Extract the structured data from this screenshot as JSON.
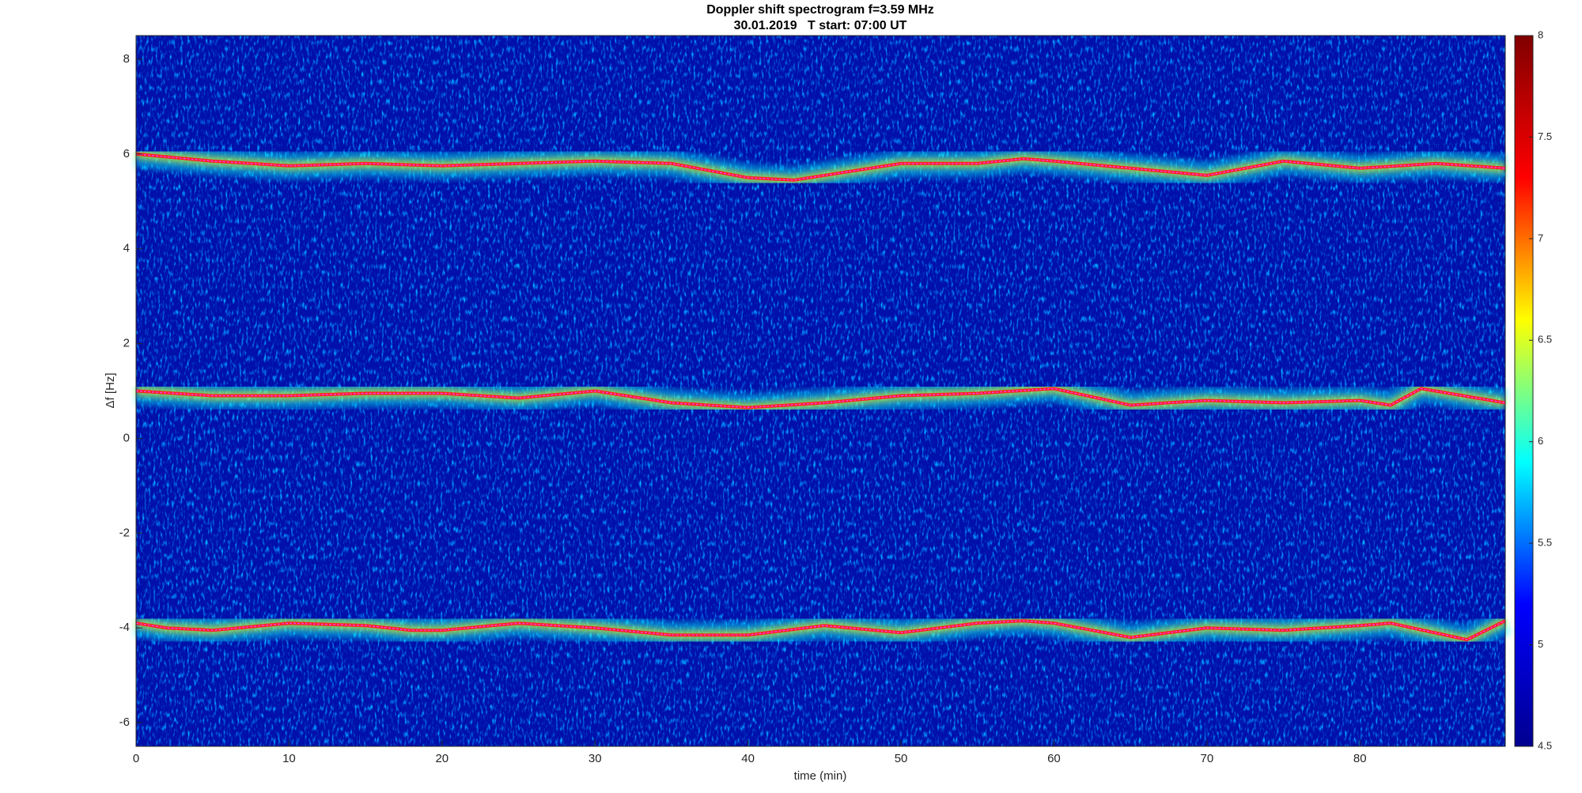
{
  "chart_data": {
    "type": "spectrogram",
    "title": "Doppler shift spectrogram f=3.59 MHz",
    "subtitle": "30.01.2019   T start: 07:00 UT",
    "xlabel": "time (min)",
    "ylabel": "Δf [Hz]",
    "xlim": [
      0,
      89.5
    ],
    "xticks": [
      0,
      10,
      20,
      30,
      40,
      50,
      60,
      70,
      80
    ],
    "ylim": [
      -6.5,
      8.5
    ],
    "yticks": [
      -6,
      -4,
      -2,
      0,
      2,
      4,
      6,
      8
    ],
    "colormap": "jet",
    "clim": [
      4.5,
      8
    ],
    "cticks": [
      4.5,
      5,
      5.5,
      6,
      6.5,
      7,
      7.5,
      8
    ],
    "series": [
      {
        "color": "#ff2020",
        "x": [
          0,
          5,
          10,
          15,
          20,
          25,
          30,
          35,
          40,
          43,
          45,
          50,
          55,
          58,
          60,
          65,
          70,
          75,
          80,
          85,
          89.5
        ],
        "values": [
          6.0,
          5.85,
          5.75,
          5.8,
          5.75,
          5.8,
          5.85,
          5.8,
          5.5,
          5.45,
          5.55,
          5.8,
          5.8,
          5.9,
          5.85,
          5.7,
          5.55,
          5.85,
          5.7,
          5.8,
          5.7
        ]
      },
      {
        "color": "#ff2020",
        "x": [
          0,
          5,
          10,
          15,
          20,
          25,
          30,
          35,
          40,
          45,
          50,
          55,
          60,
          65,
          70,
          75,
          80,
          82,
          84,
          89.5
        ],
        "values": [
          1.0,
          0.9,
          0.9,
          0.95,
          0.95,
          0.85,
          1.0,
          0.75,
          0.65,
          0.75,
          0.9,
          0.95,
          1.05,
          0.7,
          0.8,
          0.75,
          0.8,
          0.7,
          1.05,
          0.75
        ]
      },
      {
        "color": "#ff2020",
        "x": [
          0,
          2,
          5,
          10,
          15,
          18,
          20,
          25,
          30,
          35,
          40,
          45,
          50,
          55,
          58,
          60,
          65,
          70,
          75,
          80,
          82,
          87,
          89.5
        ],
        "values": [
          -3.9,
          -4.0,
          -4.05,
          -3.9,
          -3.95,
          -4.05,
          -4.05,
          -3.9,
          -4.0,
          -4.15,
          -4.15,
          -3.95,
          -4.1,
          -3.9,
          -3.85,
          -3.9,
          -4.2,
          -4.0,
          -4.05,
          -3.95,
          -3.9,
          -4.25,
          -3.85
        ]
      }
    ]
  }
}
